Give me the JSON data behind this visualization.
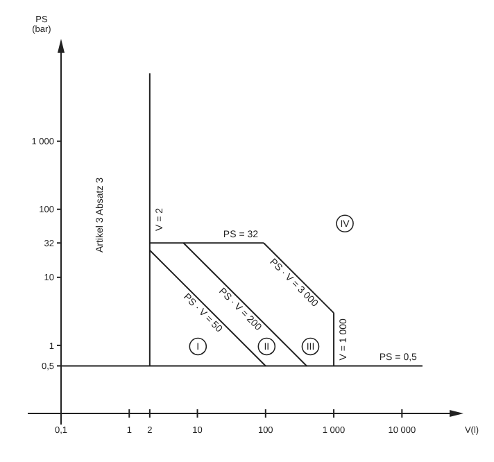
{
  "chart_data": {
    "type": "line",
    "xlabel": "V(l)",
    "ylabel": "PS\n(bar)",
    "log": "xy",
    "grid": false,
    "xlim": [
      0.1,
      50000
    ],
    "ylim": [
      0.1,
      20000
    ],
    "xticks": [
      {
        "value": 0.1,
        "label": "0,1"
      },
      1,
      2,
      10,
      100,
      {
        "value": 1000,
        "label": "1 000"
      },
      {
        "value": 10000,
        "label": "10 000"
      }
    ],
    "yticks": [
      {
        "value": 0.5,
        "label": "0,5"
      },
      1,
      10,
      32,
      100,
      {
        "value": 1000,
        "label": "1 000"
      }
    ],
    "series": [
      {
        "name": "V = 2",
        "color": "#222222",
        "x": [
          2,
          2
        ],
        "values": [
          0.5,
          10000
        ]
      },
      {
        "name": "PS = 32",
        "color": "#222222",
        "x": [
          2,
          93.75
        ],
        "values": [
          32,
          32
        ]
      },
      {
        "name": "PS · V = 50",
        "color": "#222222",
        "x": [
          2,
          100
        ],
        "values": [
          25,
          0.5
        ]
      },
      {
        "name": "PS · V = 200",
        "color": "#222222",
        "x": [
          6.25,
          400
        ],
        "values": [
          32,
          0.5
        ]
      },
      {
        "name": "PS · V = 3 000",
        "color": "#222222",
        "x": [
          93.75,
          1000
        ],
        "values": [
          32,
          3
        ]
      },
      {
        "name": "V = 1 000",
        "color": "#222222",
        "x": [
          1000,
          1000
        ],
        "values": [
          3,
          0.5
        ]
      },
      {
        "name": "PS = 0,5",
        "color": "#222222",
        "x": [
          0.1,
          20000
        ],
        "values": [
          0.5,
          0.5
        ]
      }
    ],
    "annotations": [
      "Artikel 3 Absatz 3",
      "I",
      "II",
      "III",
      "IV"
    ]
  }
}
